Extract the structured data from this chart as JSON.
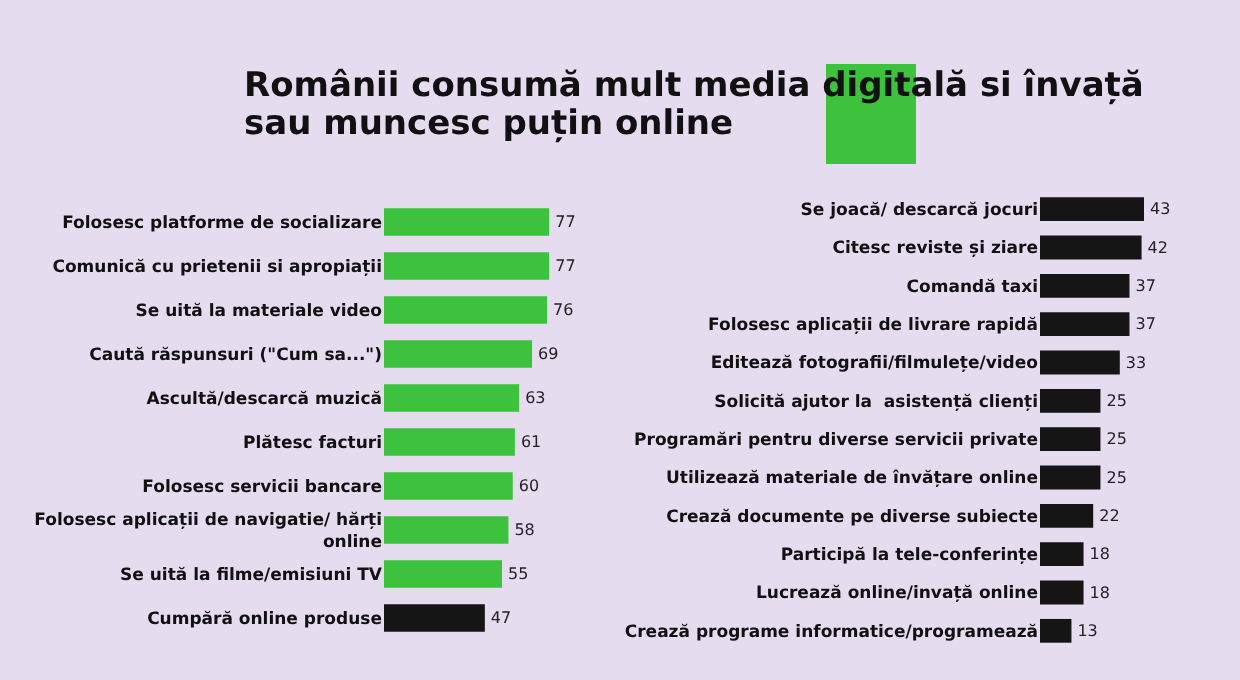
{
  "chart_data": [
    {
      "type": "bar",
      "orientation": "horizontal",
      "title": "Românii consumă mult media digitală si învață sau muncesc puțin online",
      "data_labels": true,
      "categories": [
        "Folosesc platforme de socializare",
        "Comunică cu prietenii si apropiații",
        "Se uită la materiale video",
        "Caută răspunsuri (\"Cum sa...\")",
        "Ascultă/descarcă muzică",
        "Plătesc facturi",
        "Folosesc servicii bancare",
        "Folosesc aplicații de navigatie/ hărți online",
        "Se uită la filme/emisiuni TV",
        "Cumpără online produse"
      ],
      "values": [
        77,
        77,
        76,
        69,
        63,
        61,
        60,
        58,
        55,
        47
      ],
      "colors": [
        "#3cc23c",
        "#3cc23c",
        "#3cc23c",
        "#3cc23c",
        "#3cc23c",
        "#3cc23c",
        "#3cc23c",
        "#3cc23c",
        "#3cc23c",
        "#151515"
      ]
    },
    {
      "type": "bar",
      "orientation": "horizontal",
      "data_labels": true,
      "categories": [
        "Se joacă/ descarcă jocuri",
        "Citesc reviste și ziare",
        "Comandă taxi",
        "Folosesc aplicații de livrare rapidă",
        "Editează fotografii/filmulețe/video",
        "Solicită ajutor la  asistență clienți",
        "Programări pentru diverse servicii private",
        "Utilizează materiale de învățare online",
        "Crează documente pe diverse subiecte",
        "Participă la tele-conferințe",
        "Lucrează online/invață online",
        "Crează programe informatice/programează"
      ],
      "values": [
        43,
        42,
        37,
        37,
        33,
        25,
        25,
        25,
        22,
        18,
        18,
        13
      ],
      "colors": [
        "#151515",
        "#151515",
        "#151515",
        "#151515",
        "#151515",
        "#151515",
        "#151515",
        "#151515",
        "#151515",
        "#151515",
        "#151515",
        "#151515"
      ]
    }
  ]
}
